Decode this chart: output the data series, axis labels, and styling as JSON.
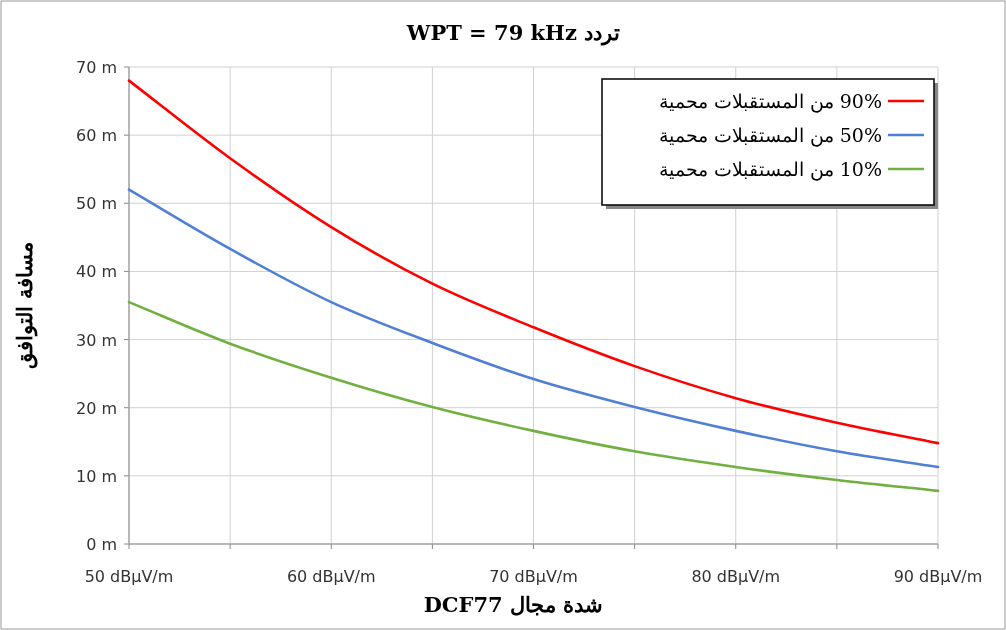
{
  "chart_data": {
    "type": "line",
    "title": "تردد WPT = 79 kHz",
    "xlabel": "شدة مجال DCF77",
    "ylabel": "مسافة التوافق",
    "x": [
      50,
      55,
      60,
      65,
      70,
      75,
      80,
      85,
      90
    ],
    "series": [
      {
        "name": "90% من المستقبلات محمية",
        "color": "#ff0000",
        "values": [
          68,
          56.6,
          46.5,
          38.2,
          31.8,
          26.1,
          21.4,
          17.8,
          14.8
        ]
      },
      {
        "name": "50% من المستقبلات محمية",
        "color": "#4f7fd6",
        "values": [
          52,
          43.3,
          35.5,
          29.5,
          24.2,
          20.1,
          16.6,
          13.6,
          11.3
        ]
      },
      {
        "name": "10% من المستقبلات محمية",
        "color": "#70b040",
        "values": [
          35.5,
          29.4,
          24.4,
          20.1,
          16.6,
          13.6,
          11.3,
          9.4,
          7.8
        ]
      }
    ],
    "xlim": [
      50,
      90
    ],
    "xticks": [
      {
        "value": 50,
        "label": "50 dBµV/m"
      },
      {
        "value": 55,
        "label": null
      },
      {
        "value": 60,
        "label": "60 dBµV/m"
      },
      {
        "value": 65,
        "label": null
      },
      {
        "value": 70,
        "label": "70 dBµV/m"
      },
      {
        "value": 75,
        "label": null
      },
      {
        "value": 80,
        "label": "80 dBµV/m"
      },
      {
        "value": 85,
        "label": null
      },
      {
        "value": 90,
        "label": "90 dBµV/m"
      }
    ],
    "ylim": [
      0,
      70
    ],
    "yticks": [
      {
        "value": 0,
        "label": "0 m"
      },
      {
        "value": 10,
        "label": "10 m"
      },
      {
        "value": 20,
        "label": "20 m"
      },
      {
        "value": 30,
        "label": "30 m"
      },
      {
        "value": 40,
        "label": "40 m"
      },
      {
        "value": 50,
        "label": "50 m"
      },
      {
        "value": 60,
        "label": "60 m"
      },
      {
        "value": 70,
        "label": "70 m"
      }
    ],
    "grid": true,
    "legend": "top right",
    "marker": "none",
    "line_style": "solid"
  }
}
